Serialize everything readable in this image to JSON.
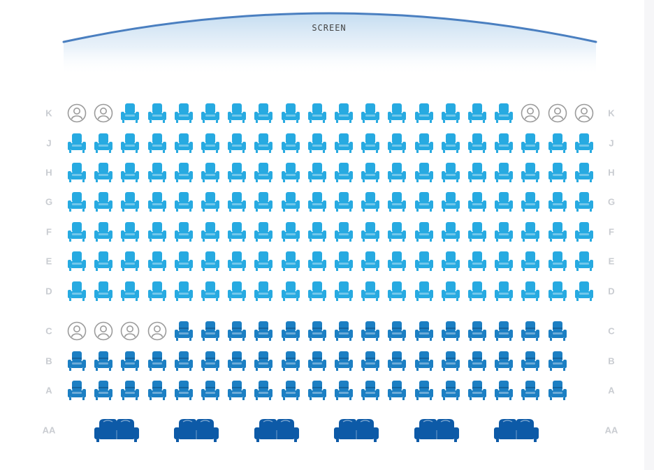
{
  "screen": {
    "label": "SCREEN",
    "arc_color": "#4a7fc0",
    "glow_color": "#b9d6ee"
  },
  "colors": {
    "available_standard": "#27aae1",
    "available_premium": "#1c7fc3",
    "sofa": "#0d5aa7",
    "occupied_outline": "#9b9b9b",
    "row_label": "#c9ccd1"
  },
  "icons": {
    "standard": "armchair-icon",
    "premium": "armchair-icon",
    "sofa": "sofa-icon",
    "occupied": "person-icon"
  },
  "rows": [
    {
      "label": "K",
      "section": "standard",
      "seats": [
        "o",
        "o",
        "a",
        "a",
        "a",
        "a",
        "a",
        "a",
        "a",
        "a",
        "a",
        "a",
        "a",
        "a",
        "a",
        "a",
        "a",
        "o",
        "o",
        "o"
      ]
    },
    {
      "label": "J",
      "section": "standard",
      "seats": [
        "a",
        "a",
        "a",
        "a",
        "a",
        "a",
        "a",
        "a",
        "a",
        "a",
        "a",
        "a",
        "a",
        "a",
        "a",
        "a",
        "a",
        "a",
        "a",
        "a"
      ]
    },
    {
      "label": "H",
      "section": "standard",
      "seats": [
        "a",
        "a",
        "a",
        "a",
        "a",
        "a",
        "a",
        "a",
        "a",
        "a",
        "a",
        "a",
        "a",
        "a",
        "a",
        "a",
        "a",
        "a",
        "a",
        "a"
      ]
    },
    {
      "label": "G",
      "section": "standard",
      "seats": [
        "a",
        "a",
        "a",
        "a",
        "a",
        "a",
        "a",
        "a",
        "a",
        "a",
        "a",
        "a",
        "a",
        "a",
        "a",
        "a",
        "a",
        "a",
        "a",
        "a"
      ]
    },
    {
      "label": "F",
      "section": "standard",
      "seats": [
        "a",
        "a",
        "a",
        "a",
        "a",
        "a",
        "a",
        "a",
        "a",
        "a",
        "a",
        "a",
        "a",
        "a",
        "a",
        "a",
        "a",
        "a",
        "a",
        "a"
      ]
    },
    {
      "label": "E",
      "section": "standard",
      "seats": [
        "a",
        "a",
        "a",
        "a",
        "a",
        "a",
        "a",
        "a",
        "a",
        "a",
        "a",
        "a",
        "a",
        "a",
        "a",
        "a",
        "a",
        "a",
        "a",
        "a"
      ]
    },
    {
      "label": "D",
      "section": "standard",
      "seats": [
        "a",
        "a",
        "a",
        "a",
        "a",
        "a",
        "a",
        "a",
        "a",
        "a",
        "a",
        "a",
        "a",
        "a",
        "a",
        "a",
        "a",
        "a",
        "a",
        "a"
      ]
    },
    {
      "label": "C",
      "section": "premium",
      "seats": [
        "o",
        "o",
        "o",
        "o",
        "a",
        "a",
        "a",
        "a",
        "a",
        "a",
        "a",
        "a",
        "a",
        "a",
        "a",
        "a",
        "a",
        "a",
        "a"
      ]
    },
    {
      "label": "B",
      "section": "premium",
      "seats": [
        "a",
        "a",
        "a",
        "a",
        "a",
        "a",
        "a",
        "a",
        "a",
        "a",
        "a",
        "a",
        "a",
        "a",
        "a",
        "a",
        "a",
        "a",
        "a"
      ]
    },
    {
      "label": "A",
      "section": "premium",
      "seats": [
        "a",
        "a",
        "a",
        "a",
        "a",
        "a",
        "a",
        "a",
        "a",
        "a",
        "a",
        "a",
        "a",
        "a",
        "a",
        "a",
        "a",
        "a",
        "a"
      ]
    },
    {
      "label": "AA",
      "section": "sofa",
      "seats": [
        "a",
        "a",
        "a",
        "a",
        "a",
        "a"
      ]
    }
  ]
}
